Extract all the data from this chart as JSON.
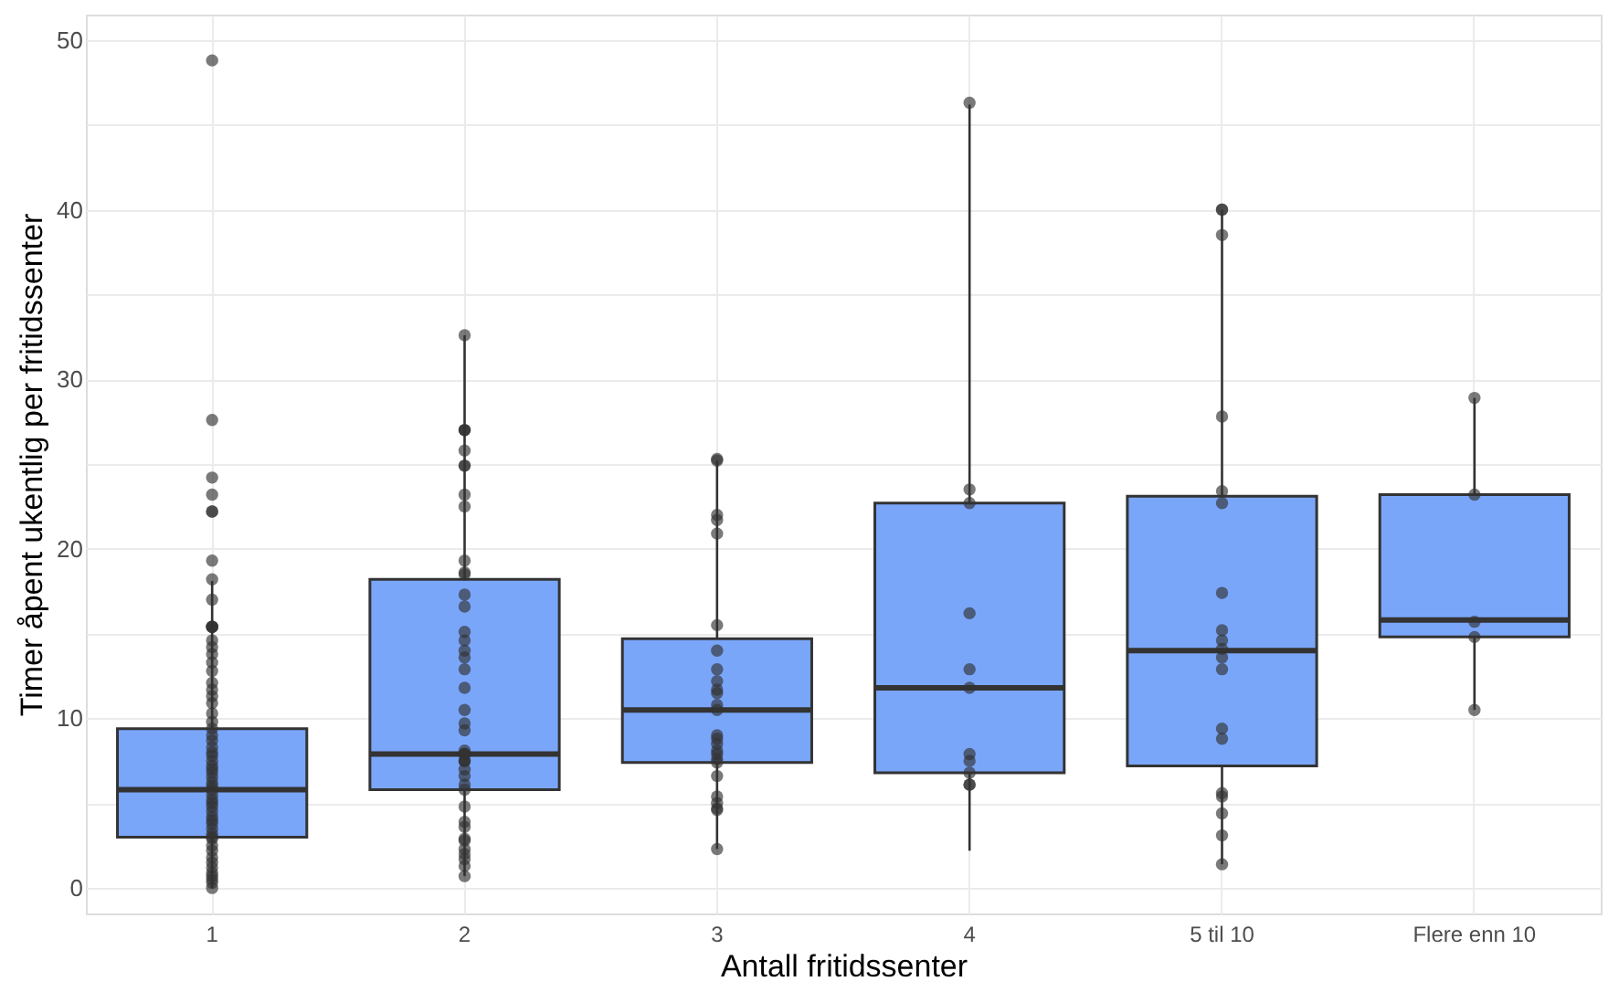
{
  "chart_data": {
    "type": "box",
    "xlabel": "Antall fritidssenter",
    "ylabel": "Timer åpent ukentlig per fritidssenter",
    "categories": [
      "1",
      "2",
      "3",
      "4",
      "5 til 10",
      "Flere enn 10"
    ],
    "ylim": [
      -1.5,
      51.5
    ],
    "yticks": [
      0,
      {
        "value": 5,
        "label": null
      },
      10,
      {
        "value": 15,
        "label": null
      },
      20,
      {
        "value": 25,
        "label": null
      },
      30,
      {
        "value": 35,
        "label": null
      },
      40,
      {
        "value": 45,
        "label": null
      },
      50
    ],
    "grid": true,
    "series": [
      {
        "color": "#7aa6fa",
        "boxes": [
          {
            "low": 0,
            "q1": 3.0,
            "median": 5.8,
            "q3": 9.4,
            "high": 18.1
          },
          {
            "low": 0.7,
            "q1": 5.8,
            "median": 7.9,
            "q3": 18.2,
            "high": 32.6
          },
          {
            "low": 2.3,
            "q1": 7.4,
            "median": 10.5,
            "q3": 14.7,
            "high": 25.2
          },
          {
            "low": 2.2,
            "q1": 6.8,
            "median": 11.8,
            "q3": 22.7,
            "high": 46.2
          },
          {
            "low": 1.4,
            "q1": 7.2,
            "median": 14.0,
            "q3": 23.1,
            "high": 40.0
          },
          {
            "low": 10.5,
            "q1": 14.8,
            "median": 15.8,
            "q3": 23.2,
            "high": 28.9
          }
        ]
      },
      {
        "type": "scatter",
        "color": "#333333",
        "marker": "circle",
        "x": [
          "1",
          "1",
          "1",
          "1",
          "1",
          "1",
          "1",
          "1",
          "1",
          "1",
          "1",
          "1",
          "1",
          "1",
          "1",
          "1",
          "1",
          "1",
          "1",
          "1",
          "1",
          "1",
          "1",
          "1",
          "1",
          "1",
          "1",
          "1",
          "1",
          "1",
          "1",
          "1",
          "1",
          "1",
          "1",
          "1",
          "1",
          "1",
          "1",
          "1",
          "1",
          "1",
          "1",
          "1",
          "1",
          "1",
          "1",
          "1",
          "1",
          "1",
          "1",
          "1",
          "1",
          "1",
          "1",
          "1",
          "1",
          "1",
          "1",
          "1",
          "2",
          "2",
          "2",
          "2",
          "2",
          "2",
          "2",
          "2",
          "2",
          "2",
          "2",
          "2",
          "2",
          "2",
          "2",
          "2",
          "2",
          "2",
          "2",
          "2",
          "2",
          "2",
          "2",
          "2",
          "2",
          "2",
          "2",
          "2",
          "2",
          "2",
          "2",
          "2",
          "2",
          "2",
          "2",
          "2",
          "2",
          "2",
          "2",
          "2",
          "2",
          "2",
          "2",
          "2",
          "3",
          "3",
          "3",
          "3",
          "3",
          "3",
          "3",
          "3",
          "3",
          "3",
          "3",
          "3",
          "3",
          "3",
          "3",
          "3",
          "3",
          "3",
          "3",
          "3",
          "3",
          "3",
          "3",
          "3",
          "3",
          "3",
          "4",
          "4",
          "4",
          "4",
          "4",
          "4",
          "4",
          "4",
          "4",
          "4",
          "4",
          "5 til 10",
          "5 til 10",
          "5 til 10",
          "5 til 10",
          "5 til 10",
          "5 til 10",
          "5 til 10",
          "5 til 10",
          "5 til 10",
          "5 til 10",
          "5 til 10",
          "5 til 10",
          "5 til 10",
          "5 til 10",
          "5 til 10",
          "5 til 10",
          "5 til 10",
          "5 til 10",
          "5 til 10",
          "Flere enn 10",
          "Flere enn 10",
          "Flere enn 10",
          "Flere enn 10",
          "Flere enn 10"
        ],
        "values": [
          48.8,
          27.6,
          24.2,
          23.2,
          22.2,
          22.2,
          19.3,
          18.2,
          17.0,
          15.4,
          15.4,
          15.4,
          15.4,
          14.6,
          14.2,
          13.8,
          13.3,
          12.8,
          12.1,
          11.7,
          11.3,
          10.9,
          10.3,
          9.8,
          9.4,
          9.0,
          8.7,
          8.3,
          8.0,
          7.8,
          7.5,
          7.2,
          7.0,
          6.8,
          6.5,
          6.2,
          6.0,
          5.8,
          5.5,
          5.2,
          5.0,
          4.8,
          4.5,
          4.2,
          4.0,
          3.8,
          3.5,
          3.2,
          3.0,
          2.9,
          2.5,
          2.2,
          1.8,
          1.5,
          1.2,
          0.9,
          0.7,
          0.5,
          0.3,
          0.0,
          32.6,
          27.0,
          27.0,
          27.0,
          25.8,
          24.9,
          24.9,
          23.2,
          22.5,
          19.3,
          18.6,
          18.5,
          17.3,
          16.6,
          15.1,
          14.6,
          14.0,
          13.6,
          12.9,
          11.8,
          10.5,
          9.7,
          9.3,
          8.1,
          7.9,
          7.9,
          7.9,
          7.5,
          7.5,
          7.5,
          7.0,
          6.6,
          6.1,
          5.8,
          4.8,
          3.9,
          3.6,
          2.9,
          2.8,
          2.3,
          2.0,
          1.7,
          1.3,
          0.7,
          25.3,
          25.2,
          22.0,
          21.7,
          20.9,
          15.5,
          14.0,
          12.9,
          12.2,
          11.7,
          11.5,
          10.8,
          10.5,
          9.0,
          8.8,
          8.5,
          8.1,
          7.9,
          7.6,
          7.4,
          6.6,
          5.4,
          5.0,
          4.7,
          4.6,
          2.3,
          46.3,
          23.5,
          22.7,
          16.2,
          12.9,
          11.8,
          7.9,
          7.5,
          6.8,
          6.1,
          6.1,
          40.0,
          40.0,
          38.5,
          27.8,
          23.4,
          22.7,
          17.4,
          15.2,
          14.6,
          14.1,
          13.6,
          12.9,
          9.4,
          8.8,
          5.6,
          5.4,
          4.4,
          3.1,
          1.4,
          28.9,
          23.2,
          15.7,
          14.8,
          10.5
        ]
      }
    ]
  }
}
